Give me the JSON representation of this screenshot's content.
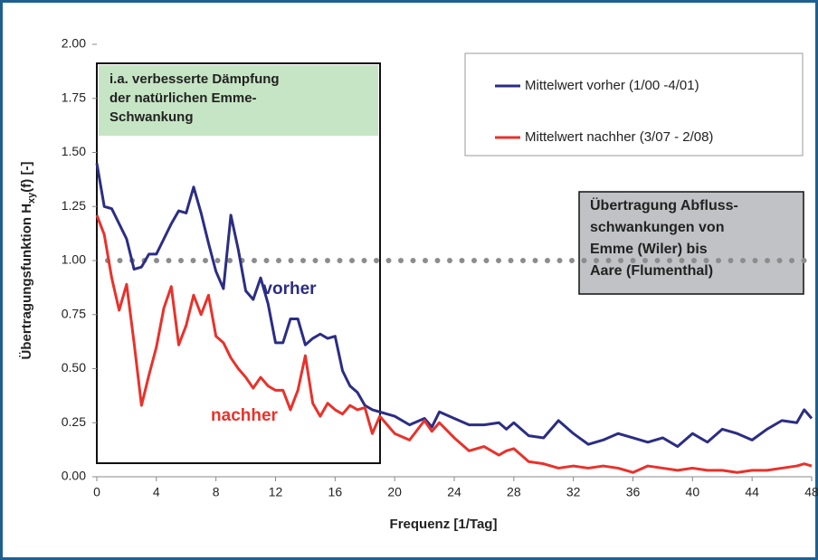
{
  "chart_data": {
    "type": "line",
    "ylabel": {
      "main": "Übertragungsfunktion H",
      "sub": "xy",
      "rest": "(f) [-]"
    },
    "xlabel": "Frequenz [1/Tag]",
    "x": [
      0,
      0.5,
      1,
      1.5,
      2,
      2.5,
      3,
      3.5,
      4,
      4.5,
      5,
      5.5,
      6,
      6.5,
      7,
      7.5,
      8,
      8.5,
      9,
      9.5,
      10,
      10.5,
      11,
      11.5,
      12,
      12.5,
      13,
      13.5,
      14,
      14.5,
      15,
      15.5,
      16,
      16.5,
      17,
      17.5,
      18,
      18.5,
      19,
      19.5,
      20,
      21,
      22,
      22.5,
      23,
      24,
      25,
      26,
      27,
      27.5,
      28,
      29,
      30,
      31,
      32,
      33,
      34,
      35,
      36,
      37,
      38,
      39,
      40,
      41,
      42,
      43,
      44,
      45,
      46,
      47,
      47.5,
      48
    ],
    "series": [
      {
        "name": "Mittelwert vorher (1/00 -4/01)",
        "color": "#2b2d84",
        "values": [
          1.45,
          1.25,
          1.24,
          1.17,
          1.1,
          0.96,
          0.97,
          1.03,
          1.03,
          1.1,
          1.17,
          1.23,
          1.22,
          1.34,
          1.22,
          1.08,
          0.95,
          0.87,
          1.21,
          1.05,
          0.86,
          0.82,
          0.92,
          0.8,
          0.62,
          0.62,
          0.73,
          0.73,
          0.61,
          0.64,
          0.66,
          0.64,
          0.65,
          0.49,
          0.42,
          0.39,
          0.33,
          0.31,
          0.3,
          0.29,
          0.28,
          0.24,
          0.27,
          0.23,
          0.3,
          0.27,
          0.24,
          0.24,
          0.25,
          0.22,
          0.25,
          0.19,
          0.18,
          0.26,
          0.2,
          0.15,
          0.17,
          0.2,
          0.18,
          0.16,
          0.18,
          0.14,
          0.2,
          0.16,
          0.22,
          0.2,
          0.17,
          0.22,
          0.26,
          0.25,
          0.31,
          0.27
        ]
      },
      {
        "name": "Mittelwert nachher (3/07 - 2/08)",
        "color": "#e8322b",
        "values": [
          1.21,
          1.12,
          0.92,
          0.77,
          0.89,
          0.62,
          0.33,
          0.47,
          0.6,
          0.78,
          0.88,
          0.61,
          0.7,
          0.84,
          0.75,
          0.84,
          0.65,
          0.62,
          0.55,
          0.5,
          0.46,
          0.41,
          0.46,
          0.42,
          0.4,
          0.4,
          0.31,
          0.4,
          0.56,
          0.34,
          0.28,
          0.34,
          0.31,
          0.29,
          0.33,
          0.31,
          0.32,
          0.2,
          0.28,
          0.24,
          0.2,
          0.17,
          0.26,
          0.21,
          0.25,
          0.18,
          0.12,
          0.14,
          0.1,
          0.12,
          0.13,
          0.07,
          0.06,
          0.04,
          0.05,
          0.04,
          0.05,
          0.04,
          0.02,
          0.05,
          0.04,
          0.03,
          0.04,
          0.03,
          0.03,
          0.02,
          0.03,
          0.03,
          0.04,
          0.05,
          0.06,
          0.05
        ]
      }
    ],
    "reference_line": 1,
    "xlim": [
      0,
      48
    ],
    "xticks": [
      0,
      4,
      8,
      12,
      16,
      20,
      24,
      28,
      32,
      36,
      40,
      44,
      48
    ],
    "ylim": [
      0,
      2
    ],
    "yticks": [
      {
        "value": 0,
        "label": "0.00"
      },
      {
        "value": 0.25,
        "label": "0.25"
      },
      {
        "value": 0.5,
        "label": "0.50"
      },
      {
        "value": 0.75,
        "label": "0.75"
      },
      {
        "value": 1,
        "label": "1.00"
      },
      {
        "value": 1.25,
        "label": "1.25"
      },
      {
        "value": 1.5,
        "label": "1.50"
      },
      {
        "value": 1.75,
        "label": "1.75"
      },
      {
        "value": 2,
        "label": "2.00"
      }
    ],
    "annotations": {
      "green_box": [
        "i.a. verbesserte Dämpfung",
        "der natürlichen Emme-",
        "Schwankung"
      ],
      "gray_box": [
        "Übertragung Abfluss-",
        "schwankungen von",
        "Emme (Wiler) bis",
        "Aare (Flumenthal)"
      ],
      "vorher": "vorher",
      "nachher": "nachher"
    }
  }
}
